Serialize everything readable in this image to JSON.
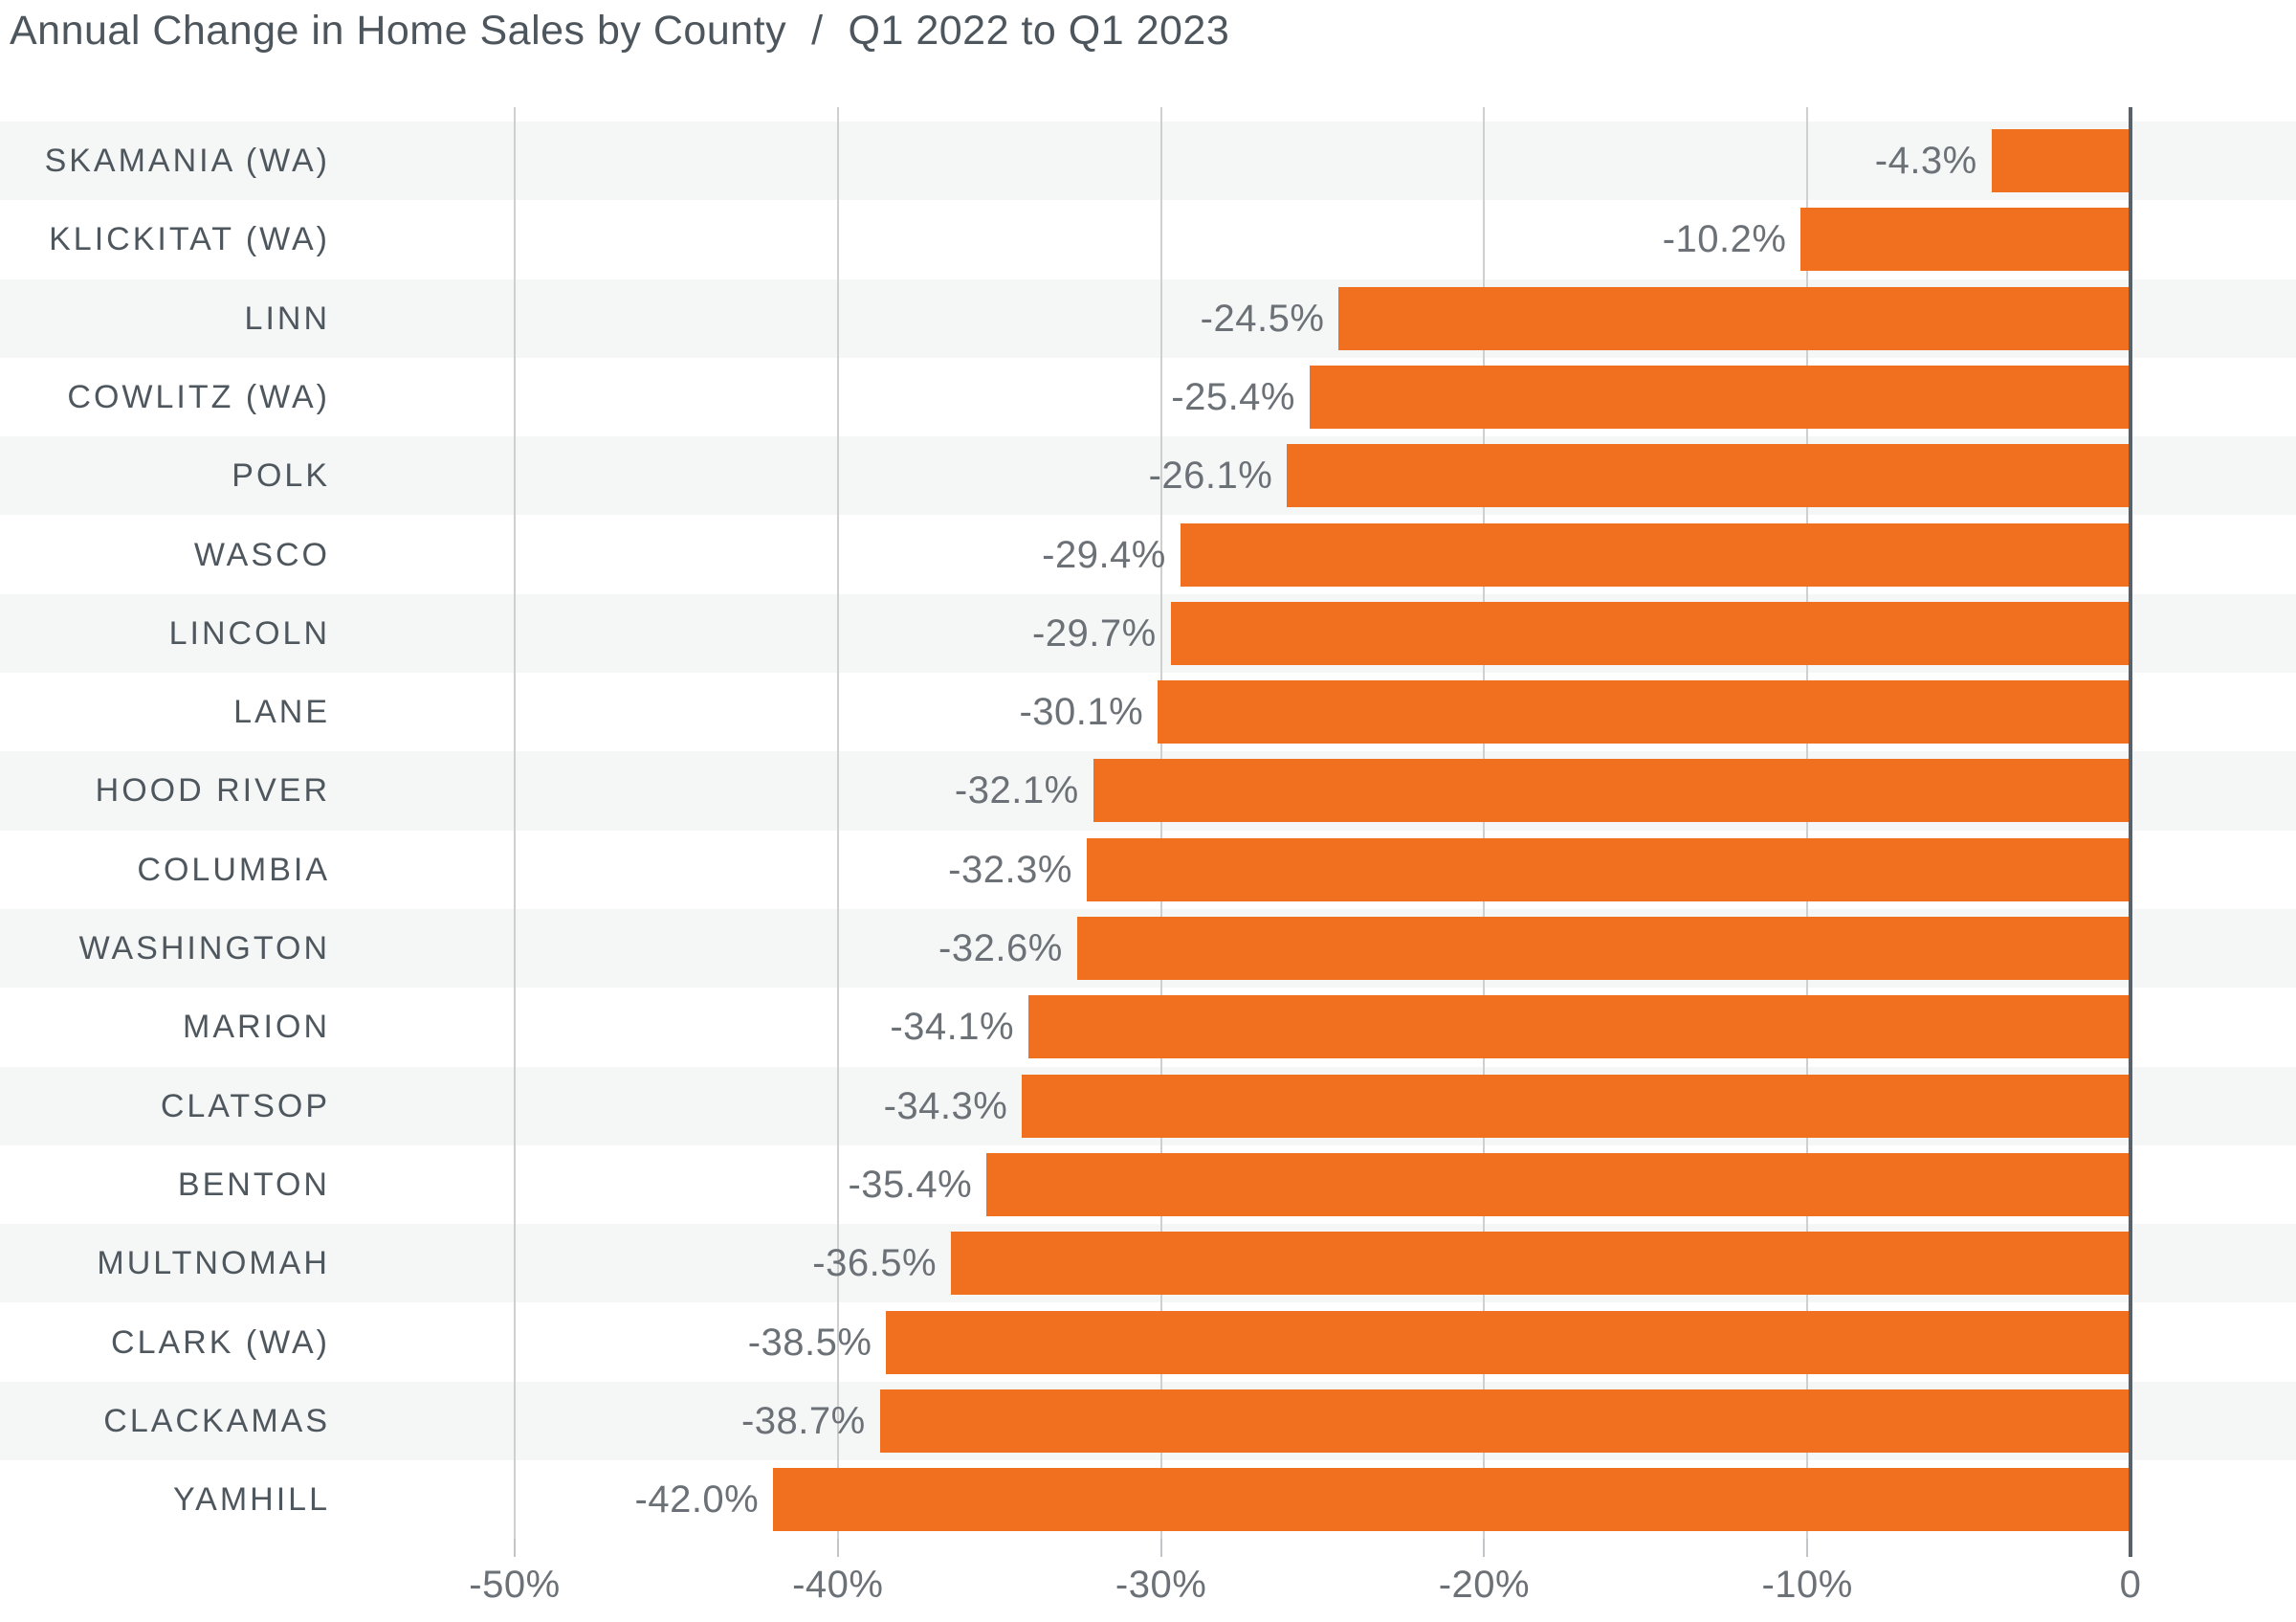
{
  "title": {
    "main": "Annual Change in Home Sales by County",
    "separator": "/",
    "period": "Q1 2022 to Q1 2023"
  },
  "colors": {
    "bar": "#F1701F",
    "row_band": "#F5F6F6",
    "row_band_alt": "#FFFFFF",
    "gridline": "#CFCFCF",
    "tick": "#C2C5C7",
    "zero_axis": "#59616A",
    "title_text": "#4E565D",
    "county_text": "#4F575E",
    "value_text": "#6B7176",
    "axis_label_text": "#6B7176",
    "background": "#FFFFFF"
  },
  "chart_data": {
    "type": "bar",
    "orientation": "horizontal",
    "title": "Annual Change in Home Sales by County / Q1 2022 to Q1 2023",
    "xlabel": "",
    "ylabel": "",
    "unit": "%",
    "grid": "vertical",
    "legend": "none",
    "axis_range": [
      -50,
      0
    ],
    "categories": [
      "SKAMANIA (WA)",
      "KLICKITAT (WA)",
      "LINN",
      "COWLITZ (WA)",
      "POLK",
      "WASCO",
      "LINCOLN",
      "LANE",
      "HOOD RIVER",
      "COLUMBIA",
      "WASHINGTON",
      "MARION",
      "CLATSOP",
      "BENTON",
      "MULTNOMAH",
      "CLARK (WA)",
      "CLACKAMAS",
      "YAMHILL"
    ],
    "values": [
      -4.3,
      -10.2,
      -24.5,
      -25.4,
      -26.1,
      -29.4,
      -29.7,
      -30.1,
      -32.1,
      -32.3,
      -32.6,
      -34.1,
      -34.3,
      -35.4,
      -36.5,
      -38.5,
      -38.7,
      -42.0
    ],
    "value_labels": [
      "-4.3%",
      "-10.2%",
      "-24.5%",
      "-25.4%",
      "-26.1%",
      "-29.4%",
      "-29.7%",
      "-30.1%",
      "-32.1%",
      "-32.3%",
      "-32.6%",
      "-34.1%",
      "-34.3%",
      "-35.4%",
      "-36.5%",
      "-38.5%",
      "-38.7%",
      "-42.0%"
    ],
    "x_ticks": [
      {
        "value": -50,
        "label": "-50%"
      },
      {
        "value": -40,
        "label": "-40%"
      },
      {
        "value": -30,
        "label": "-30%"
      },
      {
        "value": -20,
        "label": "-20%"
      },
      {
        "value": -10,
        "label": "-10%"
      },
      {
        "value": 0,
        "label": "0"
      }
    ]
  }
}
